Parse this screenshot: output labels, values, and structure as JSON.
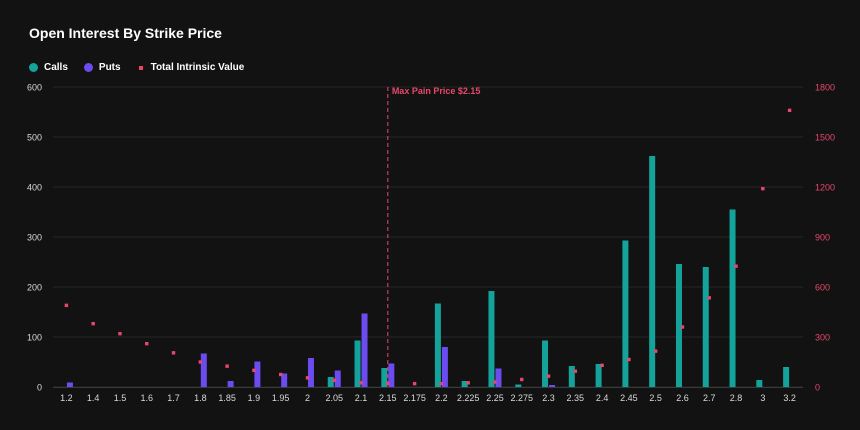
{
  "title": "Open Interest By Strike Price",
  "legend": {
    "calls": "Calls",
    "puts": "Puts",
    "intrinsic": "Total Intrinsic Value"
  },
  "colors": {
    "calls": "#14a39a",
    "puts": "#6c4bf0",
    "intrinsic": "#e8476b",
    "max_pain": "#e8476b",
    "grid": "#262626",
    "axis_text": "#d9d9d9",
    "right_axis_text": "#e8476b",
    "background": "#121212"
  },
  "chart_data": {
    "type": "bar",
    "categories": [
      "1.2",
      "1.4",
      "1.5",
      "1.6",
      "1.7",
      "1.8",
      "1.85",
      "1.9",
      "1.95",
      "2",
      "2.05",
      "2.1",
      "2.15",
      "2.175",
      "2.2",
      "2.225",
      "2.25",
      "2.275",
      "2.3",
      "2.35",
      "2.4",
      "2.45",
      "2.5",
      "2.6",
      "2.7",
      "2.8",
      "3",
      "3.2"
    ],
    "series": [
      {
        "name": "Calls",
        "axis": "left",
        "values": [
          0,
          0,
          0,
          0,
          0,
          0,
          0,
          0,
          0,
          0,
          20,
          93,
          38,
          0,
          167,
          12,
          192,
          5,
          93,
          42,
          46,
          293,
          462,
          246,
          240,
          355,
          14,
          40
        ]
      },
      {
        "name": "Puts",
        "axis": "left",
        "values": [
          9,
          0,
          0,
          0,
          0,
          67,
          12,
          51,
          27,
          58,
          33,
          147,
          47,
          0,
          80,
          0,
          37,
          0,
          4,
          0,
          0,
          0,
          0,
          0,
          0,
          0,
          0,
          0
        ]
      },
      {
        "name": "Total Intrinsic Value",
        "axis": "right",
        "type": "scatter",
        "values": [
          490,
          380,
          320,
          260,
          205,
          150,
          125,
          100,
          75,
          55,
          40,
          25,
          20,
          20,
          20,
          25,
          30,
          45,
          65,
          95,
          130,
          165,
          215,
          360,
          535,
          725,
          1190,
          1660
        ]
      }
    ],
    "left_axis": {
      "min": 0,
      "max": 600,
      "ticks": [
        0,
        100,
        200,
        300,
        400,
        500,
        600
      ]
    },
    "right_axis": {
      "min": 0,
      "max": 1800,
      "ticks": [
        0,
        300,
        600,
        900,
        1200,
        1500,
        1800
      ]
    },
    "annotation": {
      "label": "Max Pain Price $2.15",
      "category": "2.15"
    },
    "grid": true,
    "legend_position": "top-left"
  }
}
